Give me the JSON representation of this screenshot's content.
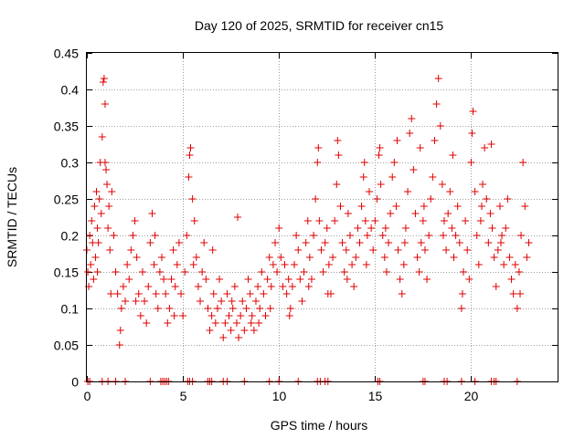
{
  "chart_data": {
    "type": "scatter",
    "title": "Day 120 of 2025, SRMTID for receiver cn15",
    "xlabel": "GPS time / hours",
    "ylabel": "SRMTID / TECUs",
    "xlim": [
      0,
      24.5
    ],
    "ylim": [
      0,
      0.45
    ],
    "x_ticks": [
      0,
      5,
      10,
      15,
      20
    ],
    "x_tick_labels": [
      "0",
      "5",
      "10",
      "15",
      "20"
    ],
    "y_ticks": [
      0,
      0.05,
      0.1,
      0.15,
      0.2,
      0.25,
      0.3,
      0.35,
      0.4,
      0.45
    ],
    "y_tick_labels": [
      "0",
      "0.05",
      "0.1",
      "0.15",
      "0.2",
      "0.25",
      "0.3",
      "0.35",
      "0.4",
      "0.45"
    ],
    "grid": true,
    "marker": "plus",
    "series": [
      {
        "name": "SRMTID",
        "color": "#e00000",
        "points": [
          [
            0.0,
            0.18
          ],
          [
            0.05,
            0.15
          ],
          [
            0.1,
            0.13
          ],
          [
            0.15,
            0.2
          ],
          [
            0.2,
            0.16
          ],
          [
            0.25,
            0.22
          ],
          [
            0.3,
            0.19
          ],
          [
            0.35,
            0.14
          ],
          [
            0.4,
            0.24
          ],
          [
            0.45,
            0.17
          ],
          [
            0.5,
            0.26
          ],
          [
            0.55,
            0.21
          ],
          [
            0.6,
            0.19
          ],
          [
            0.65,
            0.25
          ],
          [
            0.7,
            0.3
          ],
          [
            0.75,
            0.23
          ],
          [
            0.8,
            0.335
          ],
          [
            0.85,
            0.41
          ],
          [
            0.9,
            0.415
          ],
          [
            0.95,
            0.38
          ],
          [
            1.0,
            0.29
          ],
          [
            1.05,
            0.27
          ],
          [
            1.1,
            0.21
          ],
          [
            1.15,
            0.24
          ],
          [
            1.2,
            0.18
          ],
          [
            1.3,
            0.26
          ],
          [
            1.4,
            0.2
          ],
          [
            1.5,
            0.15
          ],
          [
            1.6,
            0.12
          ],
          [
            1.7,
            0.05
          ],
          [
            1.75,
            0.07
          ],
          [
            1.8,
            0.1
          ],
          [
            1.9,
            0.13
          ],
          [
            2.0,
            0.11
          ],
          [
            2.1,
            0.16
          ],
          [
            2.2,
            0.14
          ],
          [
            2.3,
            0.18
          ],
          [
            2.4,
            0.2
          ],
          [
            2.5,
            0.22
          ],
          [
            2.6,
            0.17
          ],
          [
            2.7,
            0.12
          ],
          [
            2.8,
            0.09
          ],
          [
            2.9,
            0.15
          ],
          [
            3.0,
            0.11
          ],
          [
            3.1,
            0.08
          ],
          [
            3.2,
            0.13
          ],
          [
            3.3,
            0.19
          ],
          [
            3.4,
            0.23
          ],
          [
            3.5,
            0.16
          ],
          [
            3.6,
            0.12
          ],
          [
            3.7,
            0.1
          ],
          [
            3.8,
            0.15
          ],
          [
            3.9,
            0.17
          ],
          [
            4.0,
            0.14
          ],
          [
            4.1,
            0.12
          ],
          [
            4.2,
            0.08
          ],
          [
            4.3,
            0.1
          ],
          [
            4.4,
            0.14
          ],
          [
            4.5,
            0.18
          ],
          [
            4.6,
            0.13
          ],
          [
            4.7,
            0.16
          ],
          [
            4.8,
            0.19
          ],
          [
            4.9,
            0.12
          ],
          [
            5.0,
            0.09
          ],
          [
            5.1,
            0.15
          ],
          [
            5.2,
            0.2
          ],
          [
            5.3,
            0.28
          ],
          [
            5.4,
            0.32
          ],
          [
            5.5,
            0.25
          ],
          [
            5.6,
            0.22
          ],
          [
            5.7,
            0.17
          ],
          [
            5.8,
            0.13
          ],
          [
            5.9,
            0.11
          ],
          [
            6.0,
            0.15
          ],
          [
            6.1,
            0.19
          ],
          [
            6.2,
            0.14
          ],
          [
            6.3,
            0.1
          ],
          [
            6.4,
            0.07
          ],
          [
            6.5,
            0.09
          ],
          [
            6.6,
            0.12
          ],
          [
            6.7,
            0.08
          ],
          [
            6.8,
            0.1
          ],
          [
            6.9,
            0.14
          ],
          [
            7.0,
            0.11
          ],
          [
            7.1,
            0.06
          ],
          [
            7.2,
            0.08
          ],
          [
            7.3,
            0.12
          ],
          [
            7.4,
            0.09
          ],
          [
            7.5,
            0.07
          ],
          [
            7.6,
            0.1
          ],
          [
            7.7,
            0.13
          ],
          [
            7.8,
            0.08
          ],
          [
            7.9,
            0.06
          ],
          [
            8.0,
            0.09
          ],
          [
            8.1,
            0.11
          ],
          [
            8.2,
            0.07
          ],
          [
            8.3,
            0.1
          ],
          [
            8.4,
            0.14
          ],
          [
            8.5,
            0.12
          ],
          [
            8.6,
            0.09
          ],
          [
            8.7,
            0.07
          ],
          [
            8.8,
            0.11
          ],
          [
            8.9,
            0.13
          ],
          [
            9.0,
            0.1
          ],
          [
            9.1,
            0.15
          ],
          [
            9.2,
            0.12
          ],
          [
            9.3,
            0.09
          ],
          [
            9.4,
            0.14
          ],
          [
            9.5,
            0.17
          ],
          [
            9.6,
            0.13
          ],
          [
            9.7,
            0.16
          ],
          [
            9.8,
            0.19
          ],
          [
            9.9,
            0.15
          ],
          [
            10.0,
            0.21
          ],
          [
            10.1,
            0.17
          ],
          [
            10.2,
            0.13
          ],
          [
            10.3,
            0.16
          ],
          [
            10.4,
            0.12
          ],
          [
            10.5,
            0.14
          ],
          [
            10.6,
            0.1
          ],
          [
            10.7,
            0.13
          ],
          [
            10.8,
            0.16
          ],
          [
            10.9,
            0.2
          ],
          [
            11.0,
            0.18
          ],
          [
            11.1,
            0.14
          ],
          [
            11.2,
            0.11
          ],
          [
            11.3,
            0.15
          ],
          [
            11.4,
            0.19
          ],
          [
            11.5,
            0.22
          ],
          [
            11.6,
            0.17
          ],
          [
            11.7,
            0.14
          ],
          [
            11.8,
            0.2
          ],
          [
            11.9,
            0.25
          ],
          [
            12.0,
            0.3
          ],
          [
            12.1,
            0.22
          ],
          [
            12.2,
            0.18
          ],
          [
            12.3,
            0.15
          ],
          [
            12.4,
            0.19
          ],
          [
            12.5,
            0.21
          ],
          [
            12.6,
            0.16
          ],
          [
            12.7,
            0.12
          ],
          [
            12.8,
            0.17
          ],
          [
            12.9,
            0.22
          ],
          [
            13.0,
            0.27
          ],
          [
            13.1,
            0.31
          ],
          [
            13.2,
            0.24
          ],
          [
            13.3,
            0.19
          ],
          [
            13.4,
            0.15
          ],
          [
            13.5,
            0.18
          ],
          [
            13.6,
            0.23
          ],
          [
            13.7,
            0.2
          ],
          [
            13.8,
            0.16
          ],
          [
            13.9,
            0.13
          ],
          [
            14.0,
            0.17
          ],
          [
            14.1,
            0.21
          ],
          [
            14.2,
            0.19
          ],
          [
            14.3,
            0.24
          ],
          [
            14.4,
            0.28
          ],
          [
            14.5,
            0.22
          ],
          [
            14.6,
            0.2
          ],
          [
            14.7,
            0.26
          ],
          [
            14.8,
            0.21
          ],
          [
            14.9,
            0.18
          ],
          [
            15.0,
            0.22
          ],
          [
            15.1,
            0.25
          ],
          [
            15.2,
            0.31
          ],
          [
            15.3,
            0.27
          ],
          [
            15.4,
            0.2
          ],
          [
            15.5,
            0.17
          ],
          [
            15.6,
            0.15
          ],
          [
            15.7,
            0.19
          ],
          [
            15.8,
            0.23
          ],
          [
            15.9,
            0.28
          ],
          [
            16.0,
            0.3
          ],
          [
            16.1,
            0.24
          ],
          [
            16.2,
            0.18
          ],
          [
            16.3,
            0.14
          ],
          [
            16.4,
            0.12
          ],
          [
            16.5,
            0.16
          ],
          [
            16.6,
            0.21
          ],
          [
            16.7,
            0.26
          ],
          [
            16.8,
            0.34
          ],
          [
            16.9,
            0.36
          ],
          [
            17.0,
            0.29
          ],
          [
            17.1,
            0.23
          ],
          [
            17.2,
            0.17
          ],
          [
            17.3,
            0.15
          ],
          [
            17.4,
            0.19
          ],
          [
            17.5,
            0.22
          ],
          [
            17.6,
            0.18
          ],
          [
            17.7,
            0.14
          ],
          [
            17.8,
            0.2
          ],
          [
            17.9,
            0.25
          ],
          [
            18.0,
            0.28
          ],
          [
            18.1,
            0.33
          ],
          [
            18.2,
            0.38
          ],
          [
            18.3,
            0.415
          ],
          [
            18.4,
            0.35
          ],
          [
            18.5,
            0.27
          ],
          [
            18.6,
            0.22
          ],
          [
            18.7,
            0.18
          ],
          [
            18.8,
            0.23
          ],
          [
            18.9,
            0.26
          ],
          [
            19.0,
            0.21
          ],
          [
            19.1,
            0.17
          ],
          [
            19.2,
            0.2
          ],
          [
            19.3,
            0.24
          ],
          [
            19.4,
            0.19
          ],
          [
            19.5,
            0.1
          ],
          [
            19.6,
            0.15
          ],
          [
            19.7,
            0.22
          ],
          [
            19.8,
            0.18
          ],
          [
            19.9,
            0.14
          ],
          [
            20.0,
            0.3
          ],
          [
            20.1,
            0.37
          ],
          [
            20.2,
            0.26
          ],
          [
            20.3,
            0.2
          ],
          [
            20.4,
            0.16
          ],
          [
            20.5,
            0.22
          ],
          [
            20.6,
            0.27
          ],
          [
            20.7,
            0.32
          ],
          [
            20.8,
            0.25
          ],
          [
            20.9,
            0.19
          ],
          [
            21.0,
            0.23
          ],
          [
            21.1,
            0.21
          ],
          [
            21.2,
            0.17
          ],
          [
            21.3,
            0.13
          ],
          [
            21.4,
            0.18
          ],
          [
            21.5,
            0.24
          ],
          [
            21.6,
            0.2
          ],
          [
            21.7,
            0.16
          ],
          [
            21.8,
            0.21
          ],
          [
            21.9,
            0.25
          ],
          [
            22.0,
            0.17
          ],
          [
            22.1,
            0.14
          ],
          [
            22.2,
            0.12
          ],
          [
            22.3,
            0.16
          ],
          [
            22.4,
            0.1
          ],
          [
            22.5,
            0.15
          ],
          [
            22.6,
            0.2
          ],
          [
            22.7,
            0.3
          ],
          [
            22.8,
            0.24
          ],
          [
            22.9,
            0.17
          ],
          [
            23.0,
            0.19
          ],
          [
            0.55,
            0.15
          ],
          [
            1.25,
            0.12
          ],
          [
            2.55,
            0.11
          ],
          [
            3.55,
            0.2
          ],
          [
            4.55,
            0.09
          ],
          [
            5.55,
            0.16
          ],
          [
            6.55,
            0.18
          ],
          [
            7.55,
            0.11
          ],
          [
            8.55,
            0.08
          ],
          [
            9.55,
            0.1
          ],
          [
            10.55,
            0.09
          ],
          [
            11.55,
            0.13
          ],
          [
            12.55,
            0.12
          ],
          [
            13.55,
            0.14
          ],
          [
            14.55,
            0.16
          ],
          [
            15.55,
            0.21
          ],
          [
            16.55,
            0.19
          ],
          [
            17.55,
            0.24
          ],
          [
            18.55,
            0.2
          ],
          [
            19.55,
            0.12
          ],
          [
            20.55,
            0.24
          ],
          [
            21.55,
            0.19
          ],
          [
            22.55,
            0.12
          ],
          [
            7.85,
            0.225
          ],
          [
            8.95,
            0.08
          ],
          [
            12.05,
            0.32
          ],
          [
            13.05,
            0.33
          ],
          [
            16.15,
            0.33
          ],
          [
            17.35,
            0.32
          ],
          [
            20.05,
            0.34
          ],
          [
            21.05,
            0.325
          ],
          [
            0.95,
            0.3
          ],
          [
            5.35,
            0.31
          ],
          [
            15.25,
            0.32
          ],
          [
            19.05,
            0.31
          ],
          [
            14.45,
            0.3
          ]
        ]
      },
      {
        "name": "rug",
        "color": "#e00000",
        "points": [
          [
            0.05,
            0
          ],
          [
            0.15,
            0
          ],
          [
            0.8,
            0
          ],
          [
            1.1,
            0
          ],
          [
            1.5,
            0
          ],
          [
            2.0,
            0
          ],
          [
            3.3,
            0
          ],
          [
            3.85,
            0
          ],
          [
            3.95,
            0
          ],
          [
            4.05,
            0
          ],
          [
            4.15,
            0
          ],
          [
            4.25,
            0
          ],
          [
            5.25,
            0
          ],
          [
            5.35,
            0
          ],
          [
            5.5,
            0
          ],
          [
            6.3,
            0
          ],
          [
            6.4,
            0
          ],
          [
            6.5,
            0
          ],
          [
            7.1,
            0
          ],
          [
            7.3,
            0
          ],
          [
            8.2,
            0
          ],
          [
            9.5,
            0
          ],
          [
            10.0,
            0
          ],
          [
            11.0,
            0
          ],
          [
            12.0,
            0
          ],
          [
            12.15,
            0
          ],
          [
            12.4,
            0
          ],
          [
            12.55,
            0
          ],
          [
            15.15,
            0
          ],
          [
            15.25,
            0
          ],
          [
            17.5,
            0
          ],
          [
            17.6,
            0
          ],
          [
            18.6,
            0
          ],
          [
            18.75,
            0
          ],
          [
            19.5,
            0
          ],
          [
            20.2,
            0
          ],
          [
            21.05,
            0
          ],
          [
            21.2,
            0
          ],
          [
            21.3,
            0
          ],
          [
            22.4,
            0
          ]
        ]
      }
    ]
  }
}
